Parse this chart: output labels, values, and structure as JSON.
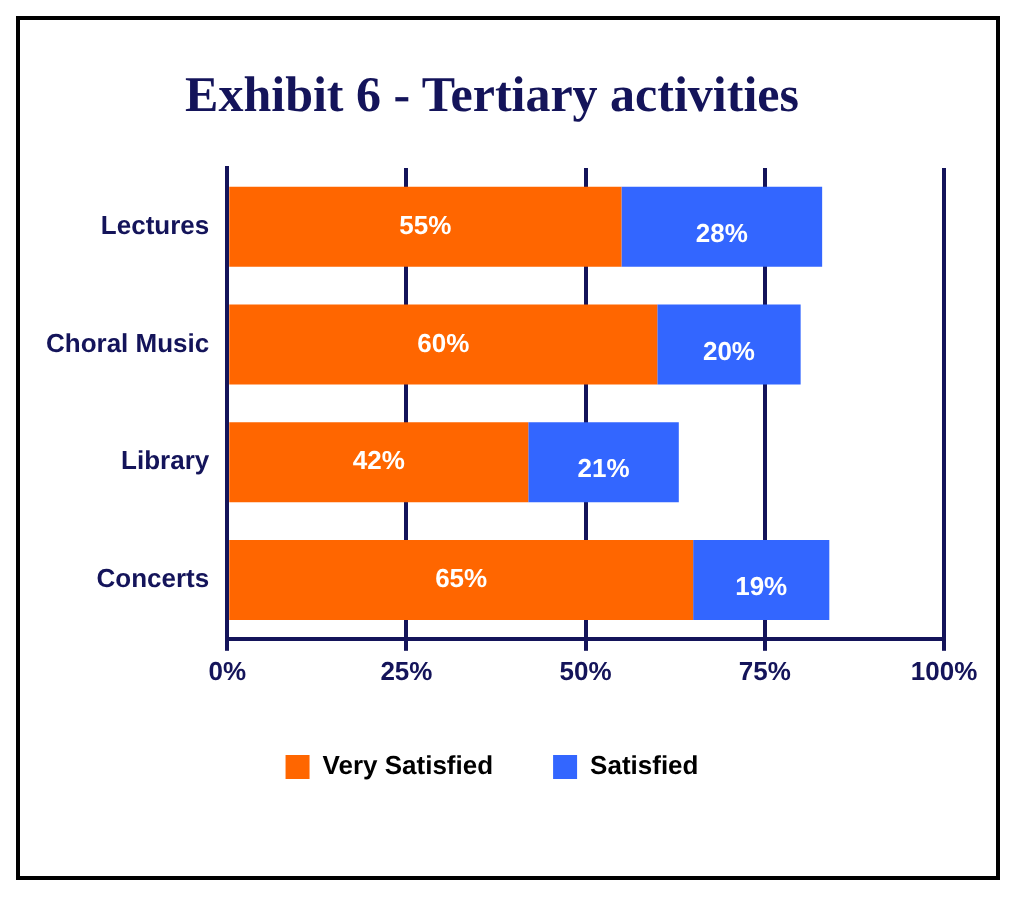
{
  "chart_data": {
    "type": "bar",
    "orientation": "horizontal",
    "stacked": true,
    "title": "Exhibit 6 - Tertiary activities",
    "categories": [
      "Lectures",
      "Choral Music",
      "Library",
      "Concerts"
    ],
    "series": [
      {
        "name": "Very Satisfied",
        "color": "#ff6600",
        "values": [
          55,
          60,
          42,
          65
        ],
        "value_labels": [
          "55%",
          "60%",
          "42%",
          "65%"
        ]
      },
      {
        "name": "Satisfied",
        "color": "#3366ff",
        "values": [
          28,
          20,
          21,
          19
        ],
        "value_labels": [
          "28%",
          "20%",
          "21%",
          "19%"
        ]
      }
    ],
    "xlim": [
      0,
      100
    ],
    "xticks": [
      {
        "value": 0,
        "label": "0%"
      },
      {
        "value": 25,
        "label": "25%"
      },
      {
        "value": 50,
        "label": "50%"
      },
      {
        "value": 75,
        "label": "75%"
      },
      {
        "value": 100,
        "label": "100%"
      }
    ],
    "grid": "x",
    "legend": "bottom"
  }
}
